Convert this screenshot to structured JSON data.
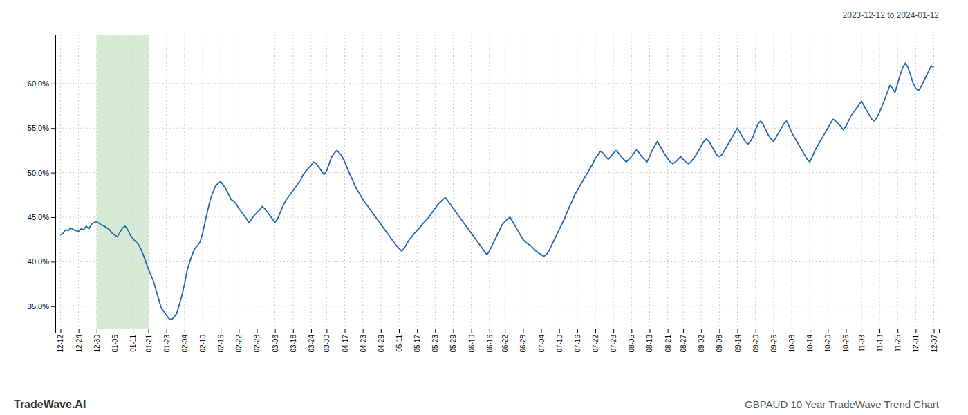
{
  "chart_data": {
    "type": "line",
    "title": "GBPAUD 10 Year TradeWave Trend Chart",
    "subtitle": "2023-12-12 to 2024-01-12",
    "annotations": [
      "TradeWave.AI"
    ],
    "color": "#2166ac",
    "grid": true,
    "highlight": {
      "start": "12-30",
      "end": "01-21",
      "color": "#d6ead6"
    },
    "ylim": [
      0.325,
      0.655
    ],
    "yticks": [
      {
        "value": 0.35,
        "label": "35.0%"
      },
      {
        "value": 0.4,
        "label": "40.0%"
      },
      {
        "value": 0.45,
        "label": "45.0%"
      },
      {
        "value": 0.5,
        "label": "50.0%"
      },
      {
        "value": 0.55,
        "label": "55.0%"
      },
      {
        "value": 0.6,
        "label": "60.0%"
      }
    ],
    "categories": [
      "12-12",
      null,
      null,
      null,
      null,
      null,
      null,
      "12-24",
      null,
      null,
      null,
      null,
      null,
      null,
      "12-30",
      null,
      null,
      null,
      null,
      null,
      null,
      "01-05",
      null,
      null,
      null,
      null,
      null,
      null,
      "01-11",
      null,
      null,
      null,
      null,
      null,
      "01-21",
      null,
      null,
      null,
      null,
      null,
      null,
      "01-23",
      null,
      null,
      null,
      null,
      null,
      null,
      "02-04",
      null,
      null,
      null,
      null,
      null,
      null,
      "02-10",
      null,
      null,
      null,
      null,
      null,
      null,
      "02-16",
      null,
      null,
      null,
      null,
      null,
      null,
      "02-22",
      null,
      null,
      null,
      null,
      null,
      null,
      "02-28",
      null,
      null,
      null,
      null,
      null,
      null,
      "03-06",
      null,
      null,
      null,
      null,
      null,
      null,
      "03-18",
      null,
      null,
      null,
      null,
      null,
      null,
      "03-24",
      null,
      null,
      null,
      null,
      null,
      "03-30",
      null,
      null,
      null,
      null,
      null,
      null,
      "04-17",
      null,
      null,
      null,
      null,
      null,
      null,
      "04-23",
      null,
      null,
      null,
      null,
      null,
      null,
      "04-29",
      null,
      null,
      null,
      null,
      null,
      null,
      "05-11",
      null,
      null,
      null,
      null,
      null,
      null,
      "05-17",
      null,
      null,
      null,
      null,
      null,
      null,
      "05-23",
      null,
      null,
      null,
      null,
      null,
      null,
      "05-29",
      null,
      null,
      null,
      null,
      null,
      null,
      "06-10",
      null,
      null,
      null,
      null,
      null,
      null,
      "06-16",
      null,
      null,
      null,
      null,
      null,
      "06-22",
      null,
      null,
      null,
      null,
      null,
      null,
      "06-28",
      null,
      null,
      null,
      null,
      null,
      null,
      "07-04",
      null,
      null,
      null,
      null,
      null,
      null,
      "07-10",
      null,
      null,
      null,
      null,
      null,
      null,
      "07-16",
      null,
      null,
      null,
      null,
      null,
      null,
      "07-22",
      null,
      null,
      null,
      null,
      null,
      null,
      "07-28",
      null,
      null,
      null,
      null,
      null,
      null,
      "08-05",
      null,
      null,
      null,
      null,
      null,
      null,
      "08-13",
      null,
      null,
      null,
      null,
      null,
      null,
      "08-21",
      null,
      null,
      null,
      null,
      null,
      "08-27",
      null,
      null,
      null,
      null,
      null,
      null,
      "09-02",
      null,
      null,
      null,
      null,
      null,
      null,
      "09-08",
      null,
      null,
      null,
      null,
      null,
      null,
      "09-14",
      null,
      null,
      null,
      null,
      null,
      null,
      "09-20",
      null,
      null,
      null,
      null,
      null,
      null,
      "09-26",
      null,
      null,
      null,
      null,
      null,
      null,
      "10-08",
      null,
      null,
      null,
      null,
      null,
      null,
      "10-14",
      null,
      null,
      null,
      null,
      null,
      null,
      "10-20",
      null,
      null,
      null,
      null,
      null,
      null,
      "10-26",
      null,
      null,
      null,
      null,
      null,
      "11-03",
      null,
      null,
      null,
      null,
      null,
      null,
      "11-13",
      null,
      null,
      null,
      null,
      null,
      null,
      "11-25",
      null,
      null,
      null,
      null,
      null,
      null,
      "12-01",
      null,
      null,
      null,
      null,
      null,
      null,
      "12-07"
    ],
    "values": [
      0.43,
      0.432,
      0.436,
      0.435,
      0.438,
      0.436,
      0.435,
      0.434,
      0.437,
      0.436,
      0.44,
      0.437,
      0.442,
      0.444,
      0.445,
      0.443,
      0.441,
      0.44,
      0.438,
      0.436,
      0.432,
      0.43,
      0.428,
      0.433,
      0.438,
      0.44,
      0.436,
      0.43,
      0.426,
      0.423,
      0.42,
      0.415,
      0.408,
      0.4,
      0.392,
      0.385,
      0.378,
      0.368,
      0.358,
      0.348,
      0.344,
      0.34,
      0.336,
      0.335,
      0.338,
      0.342,
      0.352,
      0.362,
      0.375,
      0.39,
      0.4,
      0.408,
      0.415,
      0.418,
      0.422,
      0.432,
      0.445,
      0.458,
      0.47,
      0.478,
      0.485,
      0.488,
      0.49,
      0.486,
      0.482,
      0.476,
      0.47,
      0.468,
      0.465,
      0.46,
      0.456,
      0.452,
      0.448,
      0.444,
      0.448,
      0.452,
      0.455,
      0.458,
      0.462,
      0.46,
      0.456,
      0.452,
      0.448,
      0.444,
      0.448,
      0.455,
      0.462,
      0.468,
      0.472,
      0.476,
      0.48,
      0.484,
      0.488,
      0.492,
      0.498,
      0.502,
      0.505,
      0.508,
      0.512,
      0.51,
      0.506,
      0.502,
      0.498,
      0.502,
      0.51,
      0.518,
      0.522,
      0.525,
      0.522,
      0.518,
      0.512,
      0.505,
      0.498,
      0.492,
      0.485,
      0.48,
      0.475,
      0.47,
      0.466,
      0.462,
      0.458,
      0.454,
      0.45,
      0.446,
      0.442,
      0.438,
      0.434,
      0.43,
      0.426,
      0.422,
      0.418,
      0.415,
      0.412,
      0.415,
      0.42,
      0.425,
      0.428,
      0.432,
      0.435,
      0.438,
      0.442,
      0.445,
      0.448,
      0.452,
      0.456,
      0.46,
      0.464,
      0.467,
      0.47,
      0.472,
      0.468,
      0.464,
      0.46,
      0.456,
      0.452,
      0.448,
      0.444,
      0.44,
      0.436,
      0.432,
      0.428,
      0.424,
      0.42,
      0.416,
      0.412,
      0.408,
      0.412,
      0.418,
      0.424,
      0.43,
      0.436,
      0.442,
      0.445,
      0.448,
      0.45,
      0.445,
      0.44,
      0.435,
      0.43,
      0.425,
      0.422,
      0.42,
      0.418,
      0.415,
      0.412,
      0.41,
      0.408,
      0.406,
      0.408,
      0.412,
      0.418,
      0.424,
      0.43,
      0.436,
      0.442,
      0.448,
      0.455,
      0.462,
      0.468,
      0.475,
      0.48,
      0.485,
      0.49,
      0.495,
      0.5,
      0.505,
      0.51,
      0.516,
      0.52,
      0.524,
      0.522,
      0.518,
      0.515,
      0.518,
      0.522,
      0.525,
      0.522,
      0.518,
      0.515,
      0.512,
      0.515,
      0.518,
      0.522,
      0.526,
      0.522,
      0.518,
      0.515,
      0.512,
      0.518,
      0.525,
      0.53,
      0.535,
      0.53,
      0.525,
      0.52,
      0.516,
      0.512,
      0.51,
      0.512,
      0.515,
      0.518,
      0.515,
      0.512,
      0.51,
      0.512,
      0.516,
      0.52,
      0.525,
      0.53,
      0.535,
      0.538,
      0.535,
      0.53,
      0.525,
      0.52,
      0.518,
      0.52,
      0.525,
      0.53,
      0.535,
      0.54,
      0.545,
      0.55,
      0.545,
      0.54,
      0.535,
      0.532,
      0.535,
      0.54,
      0.548,
      0.555,
      0.558,
      0.554,
      0.548,
      0.542,
      0.538,
      0.535,
      0.54,
      0.545,
      0.55,
      0.555,
      0.558,
      0.552,
      0.545,
      0.54,
      0.535,
      0.53,
      0.525,
      0.52,
      0.515,
      0.512,
      0.518,
      0.525,
      0.53,
      0.535,
      0.54,
      0.545,
      0.55,
      0.555,
      0.56,
      0.558,
      0.555,
      0.552,
      0.548,
      0.552,
      0.558,
      0.564,
      0.568,
      0.572,
      0.576,
      0.58,
      0.575,
      0.57,
      0.565,
      0.56,
      0.558,
      0.562,
      0.568,
      0.575,
      0.582,
      0.59,
      0.598,
      0.595,
      0.59,
      0.6,
      0.61,
      0.618,
      0.623,
      0.618,
      0.61,
      0.6,
      0.595,
      0.592,
      0.596,
      0.602,
      0.608,
      0.614,
      0.62,
      0.618
    ]
  }
}
